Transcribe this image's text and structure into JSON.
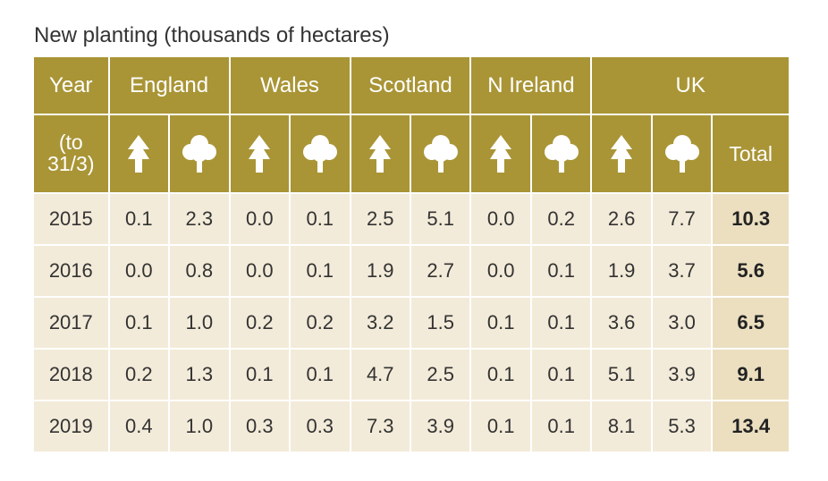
{
  "title": "New planting (thousands of hectares)",
  "colors": {
    "header_bg": "#a99536",
    "row_bg": "#f3ebd9",
    "total_bg": "#ebdfc0"
  },
  "header": {
    "year": "Year",
    "year_sub_line1": "(to",
    "year_sub_line2": "31/3)",
    "regions": [
      "England",
      "Wales",
      "Scotland",
      "N Ireland",
      "UK"
    ],
    "total": "Total",
    "icons": [
      "conifer-icon",
      "broadleaf-icon"
    ]
  },
  "rows": [
    {
      "year": "2015",
      "values": [
        "0.1",
        "2.3",
        "0.0",
        "0.1",
        "2.5",
        "5.1",
        "0.0",
        "0.2",
        "2.6",
        "7.7"
      ],
      "total": "10.3"
    },
    {
      "year": "2016",
      "values": [
        "0.0",
        "0.8",
        "0.0",
        "0.1",
        "1.9",
        "2.7",
        "0.0",
        "0.1",
        "1.9",
        "3.7"
      ],
      "total": "5.6"
    },
    {
      "year": "2017",
      "values": [
        "0.1",
        "1.0",
        "0.2",
        "0.2",
        "3.2",
        "1.5",
        "0.1",
        "0.1",
        "3.6",
        "3.0"
      ],
      "total": "6.5"
    },
    {
      "year": "2018",
      "values": [
        "0.2",
        "1.3",
        "0.1",
        "0.1",
        "4.7",
        "2.5",
        "0.1",
        "0.1",
        "5.1",
        "3.9"
      ],
      "total": "9.1"
    },
    {
      "year": "2019",
      "values": [
        "0.4",
        "1.0",
        "0.3",
        "0.3",
        "7.3",
        "3.9",
        "0.1",
        "0.1",
        "8.1",
        "5.3"
      ],
      "total": "13.4"
    }
  ]
}
